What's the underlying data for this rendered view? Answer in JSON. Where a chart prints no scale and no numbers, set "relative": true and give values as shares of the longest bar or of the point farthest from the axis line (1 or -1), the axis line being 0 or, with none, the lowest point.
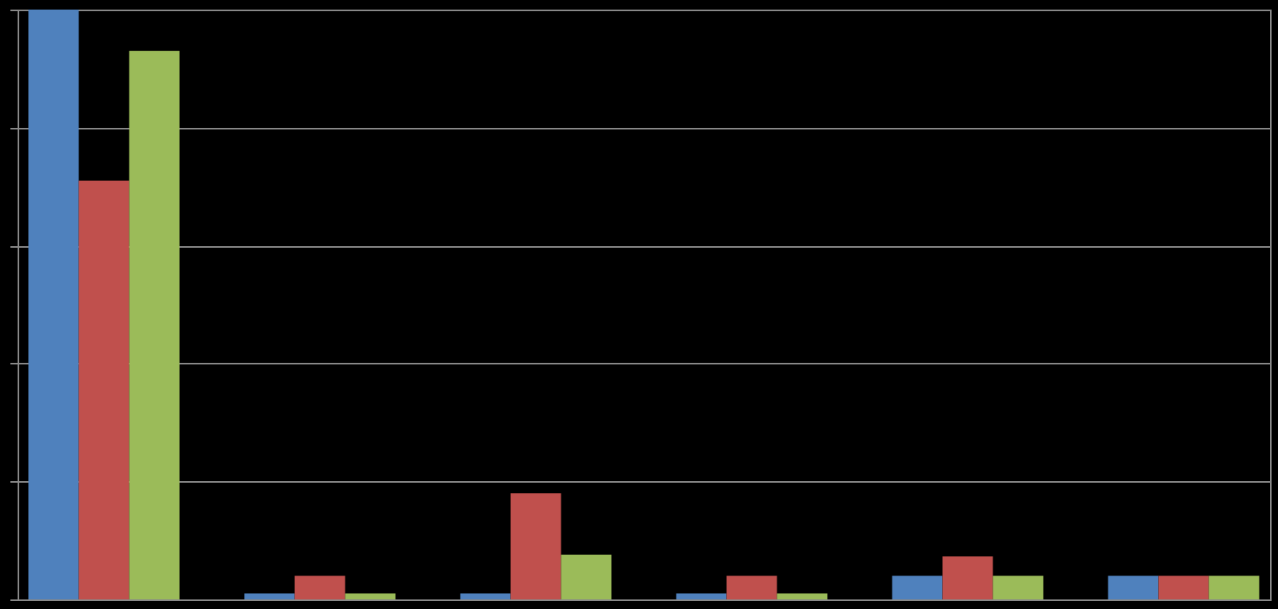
{
  "chart_data": {
    "type": "bar",
    "relative": true,
    "grid": "y",
    "tick_labels": false,
    "categories": [
      null,
      null,
      null,
      null,
      null,
      null
    ],
    "series": [
      {
        "color": "#4f81bd",
        "values": [
          1,
          0.01,
          0.01,
          0.01,
          0.04,
          0.04
        ]
      },
      {
        "color": "#c0504d",
        "values": [
          0.71,
          0.04,
          0.18,
          0.04,
          0.073,
          0.04
        ]
      },
      {
        "color": "#9bbb59",
        "values": [
          0.93,
          0.01,
          0.076,
          0.01,
          0.04,
          0.04
        ]
      }
    ]
  }
}
